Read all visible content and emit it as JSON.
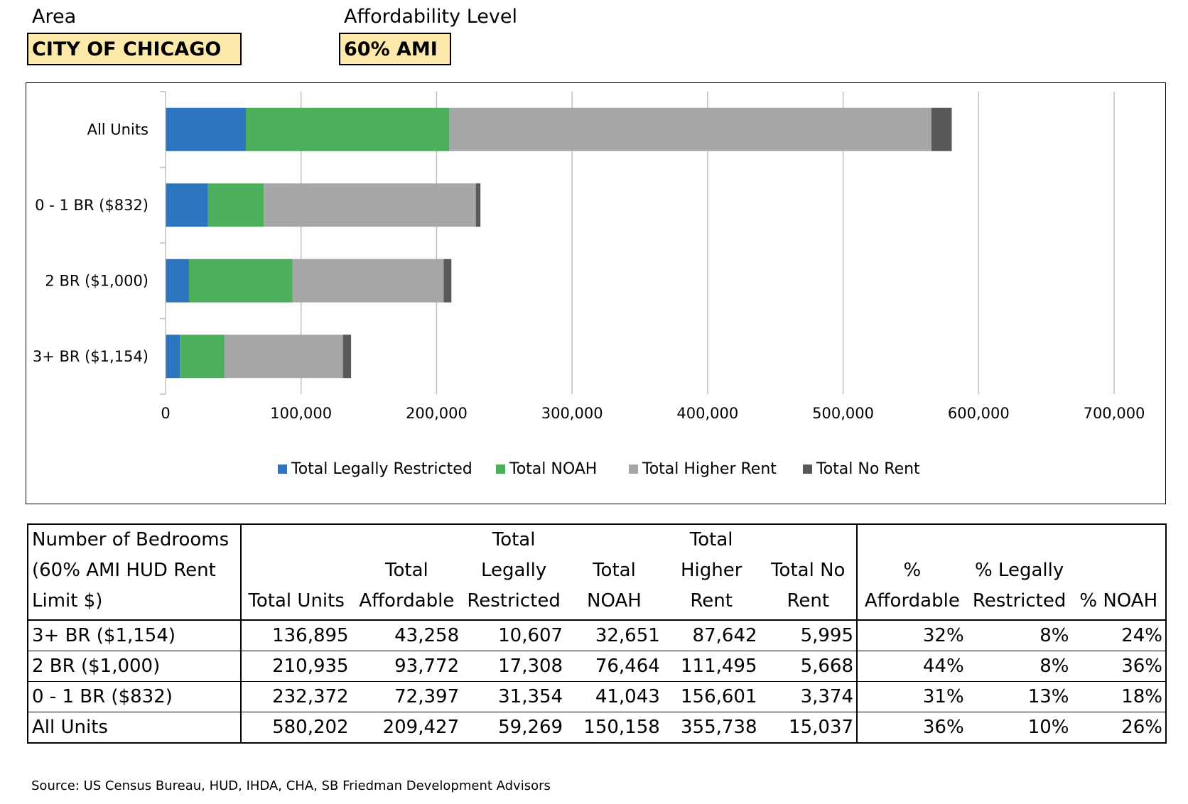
{
  "filters": {
    "area_label": "Area",
    "area_value": "CITY OF CHICAGO",
    "affordability_label": "Affordability Level",
    "affordability_value": "60% AMI"
  },
  "chart_data": {
    "type": "bar",
    "orientation": "horizontal",
    "stacked": true,
    "categories": [
      "All Units",
      "0 - 1 BR ($832)",
      "2 BR ($1,000)",
      "3+ BR ($1,154)"
    ],
    "series": [
      {
        "name": "Total Legally Restricted",
        "color": "#2e75c0",
        "values": [
          59269,
          31354,
          17308,
          10607
        ]
      },
      {
        "name": "Total NOAH",
        "color": "#4caf5c",
        "values": [
          150158,
          41043,
          76464,
          32651
        ]
      },
      {
        "name": "Total Higher Rent",
        "color": "#a6a6a6",
        "values": [
          355738,
          156601,
          111495,
          87642
        ]
      },
      {
        "name": "Total No Rent",
        "color": "#595959",
        "values": [
          15037,
          3374,
          5668,
          5995
        ]
      }
    ],
    "xlim": [
      0,
      700000
    ],
    "x_ticks": [
      "0",
      "100,000",
      "200,000",
      "300,000",
      "400,000",
      "500,000",
      "600,000",
      "700,000"
    ],
    "grid": "vertical",
    "legend": "bottom"
  },
  "table": {
    "headers": [
      [
        "Number of Bedrooms",
        "(60% AMI HUD Rent",
        "Limit $)"
      ],
      [
        "",
        "",
        "Total Units"
      ],
      [
        "",
        "Total",
        "Affordable"
      ],
      [
        "Total",
        "Legally",
        "Restricted"
      ],
      [
        "",
        "Total",
        "NOAH"
      ],
      [
        "Total",
        "Higher",
        "Rent"
      ],
      [
        "",
        "Total No",
        "Rent"
      ],
      [
        "",
        "%",
        "Affordable"
      ],
      [
        "",
        "% Legally",
        "Restricted"
      ],
      [
        "",
        "",
        "% NOAH"
      ]
    ],
    "rows": [
      [
        "3+ BR ($1,154)",
        "136,895",
        "43,258",
        "10,607",
        "32,651",
        "87,642",
        "5,995",
        "32%",
        "8%",
        "24%"
      ],
      [
        "2 BR ($1,000)",
        "210,935",
        "93,772",
        "17,308",
        "76,464",
        "111,495",
        "5,668",
        "44%",
        "8%",
        "36%"
      ],
      [
        "0 - 1 BR ($832)",
        "232,372",
        "72,397",
        "31,354",
        "41,043",
        "156,601",
        "3,374",
        "31%",
        "13%",
        "18%"
      ],
      [
        "All Units",
        "580,202",
        "209,427",
        "59,269",
        "150,158",
        "355,738",
        "15,037",
        "36%",
        "10%",
        "26%"
      ]
    ]
  },
  "source": "Source: US Census Bureau, HUD, IHDA, CHA, SB Friedman Development Advisors"
}
